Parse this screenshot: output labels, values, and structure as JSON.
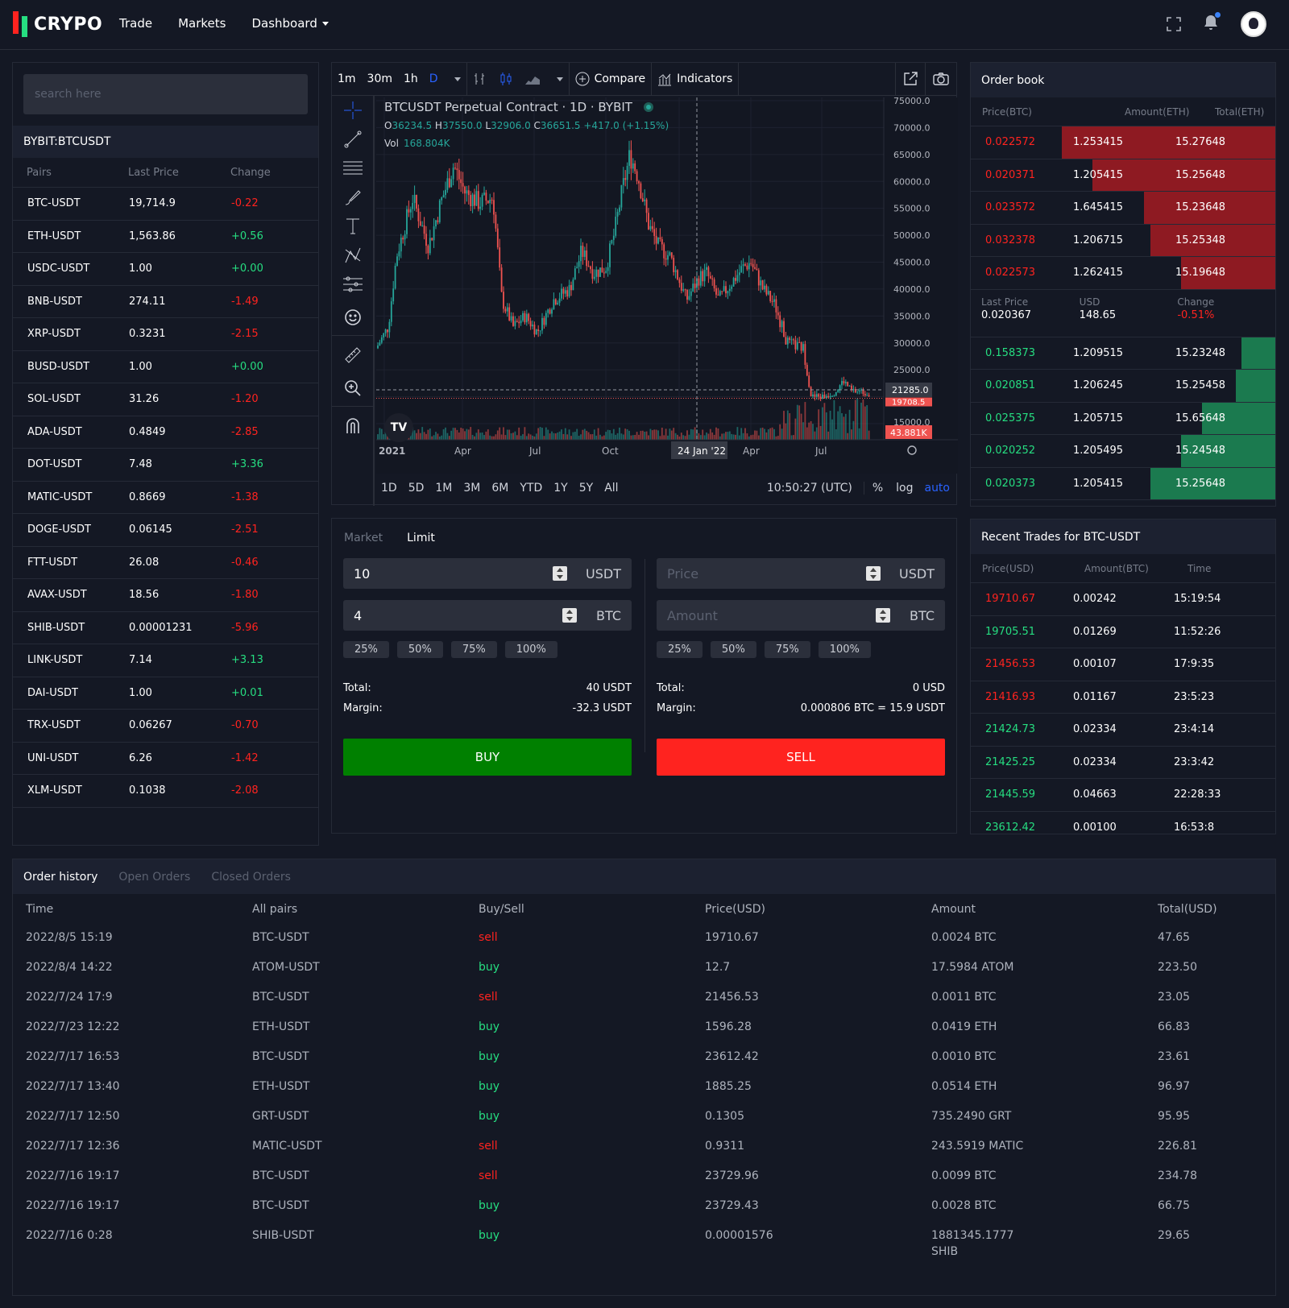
{
  "header": {
    "brand": "CRYPO",
    "nav": [
      "Trade",
      "Markets",
      "Dashboard"
    ]
  },
  "pairs": {
    "search_placeholder": "search here",
    "symbol": "BYBIT:BTCUSDT",
    "cols": [
      "Pairs",
      "Last Price",
      "Change"
    ],
    "rows": [
      [
        "BTC-USDT",
        "19,714.9",
        "-0.22"
      ],
      [
        "ETH-USDT",
        "1,563.86",
        "+0.56"
      ],
      [
        "USDC-USDT",
        "1.00",
        "+0.00"
      ],
      [
        "BNB-USDT",
        "274.11",
        "-1.49"
      ],
      [
        "XRP-USDT",
        "0.3231",
        "-2.15"
      ],
      [
        "BUSD-USDT",
        "1.00",
        "+0.00"
      ],
      [
        "SOL-USDT",
        "31.26",
        "-1.20"
      ],
      [
        "ADA-USDT",
        "0.4849",
        "-2.85"
      ],
      [
        "DOT-USDT",
        "7.48",
        "+3.36"
      ],
      [
        "MATIC-USDT",
        "0.8669",
        "-1.38"
      ],
      [
        "DOGE-USDT",
        "0.06145",
        "-2.51"
      ],
      [
        "FTT-USDT",
        "26.08",
        "-0.46"
      ],
      [
        "AVAX-USDT",
        "18.56",
        "-1.80"
      ],
      [
        "SHIB-USDT",
        "0.00001231",
        "-5.96"
      ],
      [
        "LINK-USDT",
        "7.14",
        "+3.13"
      ],
      [
        "DAI-USDT",
        "1.00",
        "+0.01"
      ],
      [
        "TRX-USDT",
        "0.06267",
        "-0.70"
      ],
      [
        "UNI-USDT",
        "6.26",
        "-1.42"
      ],
      [
        "XLM-USDT",
        "0.1038",
        "-2.08"
      ]
    ]
  },
  "chart": {
    "intervals": [
      "1m",
      "30m",
      "1h",
      "D"
    ],
    "compare": "Compare",
    "indicators": "Indicators",
    "title": "BTCUSDT Perpetual Contract · 1D · BYBIT",
    "ohlc": {
      "o": "36234.5",
      "h": "37550.0",
      "l": "32906.0",
      "c": "36651.5",
      "chg": "+417.0 (+1.15%)"
    },
    "vol_label": "Vol",
    "vol": "168.804K",
    "price_ticks": [
      "75000.0",
      "70000.0",
      "65000.0",
      "60000.0",
      "55000.0",
      "50000.0",
      "45000.0",
      "40000.0",
      "35000.0",
      "30000.0",
      "25000.0",
      "21285.0",
      "19708.5",
      "15000.0",
      "43.881K"
    ],
    "time_ticks": [
      "2021",
      "Apr",
      "Jul",
      "Oct",
      "24 Jan '22",
      "Apr",
      "Jul"
    ],
    "ranges": [
      "1D",
      "5D",
      "1M",
      "3M",
      "6M",
      "YTD",
      "1Y",
      "5Y",
      "All"
    ],
    "clock": "10:50:27 (UTC)",
    "pct": "%",
    "log": "log",
    "auto": "auto"
  },
  "orderbook": {
    "title": "Order book",
    "cols": [
      "Price(BTC)",
      "Amount(ETH)",
      "Total(ETH)"
    ],
    "asks": [
      [
        "0.022572",
        "1.253415",
        "15.27648",
        0.7
      ],
      [
        "0.020371",
        "1.205415",
        "15.25648",
        0.6
      ],
      [
        "0.023572",
        "1.645415",
        "15.23648",
        0.43
      ],
      [
        "0.032378",
        "1.206715",
        "15.25348",
        0.41
      ],
      [
        "0.022573",
        "1.262415",
        "15.19648",
        0.31
      ]
    ],
    "mid": {
      "l1": "Last Price",
      "v1": "0.020367",
      "l2": "USD",
      "v2": "148.65",
      "l3": "Change",
      "v3": "-0.51%"
    },
    "bids": [
      [
        "0.158373",
        "1.209515",
        "15.23248",
        0.11
      ],
      [
        "0.020851",
        "1.206245",
        "15.25458",
        0.13
      ],
      [
        "0.025375",
        "1.205715",
        "15.65648",
        0.24
      ],
      [
        "0.020252",
        "1.205495",
        "15.24548",
        0.31
      ],
      [
        "0.020373",
        "1.205415",
        "15.25648",
        0.41
      ]
    ]
  },
  "form": {
    "tabs": [
      "Market",
      "Limit"
    ],
    "buy": {
      "price": "10",
      "amount": "4",
      "u1": "USDT",
      "u2": "BTC",
      "total_label": "Total:",
      "total": "40 USDT",
      "margin_label": "Margin:",
      "margin": "-32.3 USDT",
      "btn": "BUY"
    },
    "sell": {
      "price_ph": "Price",
      "amount_ph": "Amount",
      "u1": "USDT",
      "u2": "BTC",
      "total_label": "Total:",
      "total": "0 USD",
      "margin_label": "Margin:",
      "margin": "0.000806 BTC = 15.9 USDT",
      "btn": "SELL"
    },
    "pcts": [
      "25%",
      "50%",
      "75%",
      "100%"
    ]
  },
  "trades": {
    "title": "Recent Trades for BTC-USDT",
    "cols": [
      "Price(USD)",
      "Amount(BTC)",
      "Time"
    ],
    "rows": [
      [
        "19710.67",
        "0.00242",
        "15:19:54",
        "r"
      ],
      [
        "19705.51",
        "0.01269",
        "11:52:26",
        "g"
      ],
      [
        "21456.53",
        "0.00107",
        "17:9:35",
        "r"
      ],
      [
        "21416.93",
        "0.01167",
        "23:5:23",
        "r"
      ],
      [
        "21424.73",
        "0.02334",
        "23:4:14",
        "g"
      ],
      [
        "21425.25",
        "0.02334",
        "23:3:42",
        "g"
      ],
      [
        "21445.59",
        "0.04663",
        "22:28:33",
        "g"
      ],
      [
        "23612.42",
        "0.00100",
        "16:53:8",
        "g"
      ]
    ]
  },
  "history": {
    "tabs": [
      "Order history",
      "Open Orders",
      "Closed Orders"
    ],
    "cols": [
      "Time",
      "All pairs",
      "Buy/Sell",
      "Price(USD)",
      "Amount",
      "Total(USD)"
    ],
    "rows": [
      [
        "2022/8/5 15:19",
        "BTC-USDT",
        "sell",
        "19710.67",
        "0.0024 BTC",
        "47.65"
      ],
      [
        "2022/8/4 14:22",
        "ATOM-USDT",
        "buy",
        "12.7",
        "17.5984 ATOM",
        "223.50"
      ],
      [
        "2022/7/24 17:9",
        "BTC-USDT",
        "sell",
        "21456.53",
        "0.0011 BTC",
        "23.05"
      ],
      [
        "2022/7/23 12:22",
        "ETH-USDT",
        "buy",
        "1596.28",
        "0.0419 ETH",
        "66.83"
      ],
      [
        "2022/7/17 16:53",
        "BTC-USDT",
        "buy",
        "23612.42",
        "0.0010 BTC",
        "23.61"
      ],
      [
        "2022/7/17 13:40",
        "ETH-USDT",
        "buy",
        "1885.25",
        "0.0514 ETH",
        "96.97"
      ],
      [
        "2022/7/17 12:50",
        "GRT-USDT",
        "buy",
        "0.1305",
        "735.2490 GRT",
        "95.95"
      ],
      [
        "2022/7/17 12:36",
        "MATIC-USDT",
        "sell",
        "0.9311",
        "243.5919 MATIC",
        "226.81"
      ],
      [
        "2022/7/16 19:17",
        "BTC-USDT",
        "sell",
        "23729.96",
        "0.0099 BTC",
        "234.78"
      ],
      [
        "2022/7/16 19:17",
        "BTC-USDT",
        "buy",
        "23729.43",
        "0.0028 BTC",
        "66.75"
      ],
      [
        "2022/7/16 0:28",
        "SHIB-USDT",
        "buy",
        "0.00001576",
        "1881345.1777 SHIB",
        "29.65"
      ]
    ]
  }
}
